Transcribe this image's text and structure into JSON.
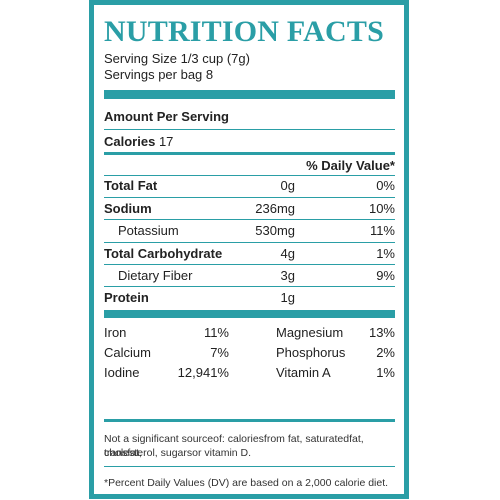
{
  "title": "NUTRITION FACTS",
  "serving_size": "Serving Size 1/3 cup (7g)",
  "servings_per_bag": "Servings per bag 8",
  "amount_per_serving": "Amount Per Serving",
  "calories_label": "Calories",
  "calories_value": "17",
  "daily_value_header": "% Daily Value*",
  "rows": [
    {
      "label": "Total Fat",
      "amount": "0g",
      "dv": "0%",
      "bold": true
    },
    {
      "label": "Sodium",
      "amount": "236mg",
      "dv": "10%",
      "bold": true
    },
    {
      "label": "Potassium",
      "amount": "530mg",
      "dv": "11%",
      "bold": false
    },
    {
      "label": "Total Carbohydrate",
      "amount": "4g",
      "dv": "1%",
      "bold": true
    },
    {
      "label": "Dietary Fiber",
      "amount": "3g",
      "dv": "9%",
      "bold": false
    },
    {
      "label": "Protein",
      "amount": "1g",
      "dv": "",
      "bold": true
    }
  ],
  "minerals": [
    {
      "left_label": "Iron",
      "left_value": "11%",
      "right_label": "Magnesium",
      "right_value": "13%"
    },
    {
      "left_label": "Calcium",
      "left_value": "7%",
      "right_label": "Phosphorus",
      "right_value": "2%"
    },
    {
      "left_label": "Iodine",
      "left_value": "12,941%",
      "right_label": "Vitamin A",
      "right_value": "1%"
    }
  ],
  "not_significant_line1": "Not a significant sourceof:  caloriesfrom  fat, saturatedfat, transfat,",
  "not_significant_line2": "cholesterol, sugarsor vitamin  D.",
  "dv_footnote": "*Percent Daily Values (DV) are based on a 2,000 calorie diet.",
  "colors": {
    "accent": "#2a9ea6",
    "text": "#222222"
  }
}
